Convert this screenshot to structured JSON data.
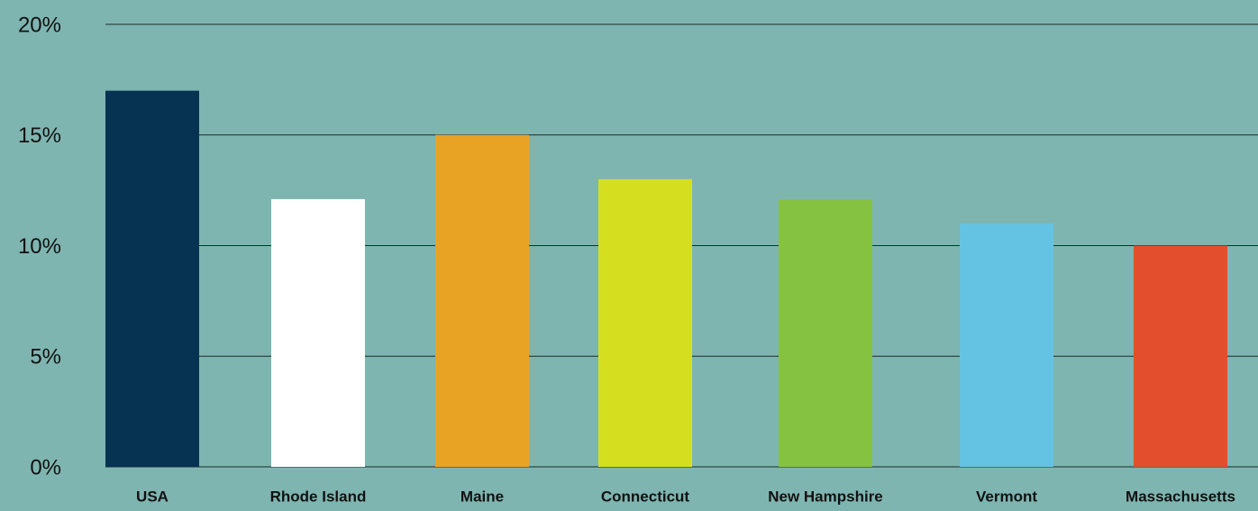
{
  "chart_data": {
    "type": "bar",
    "categories": [
      "USA",
      "Rhode Island",
      "Maine",
      "Connecticut",
      "New Hampshire",
      "Vermont",
      "Massachusetts"
    ],
    "values": [
      17,
      12.1,
      15,
      13,
      12.1,
      11,
      10
    ],
    "colors": [
      "#073352",
      "#ffffff",
      "#e8a325",
      "#d5df1f",
      "#86c241",
      "#64c3e3",
      "#e34f2c"
    ],
    "ylim": [
      0,
      20
    ],
    "yticks": [
      {
        "value": 0,
        "label": "0%"
      },
      {
        "value": 5,
        "label": "5%"
      },
      {
        "value": 10,
        "label": "10%"
      },
      {
        "value": 15,
        "label": "15%"
      },
      {
        "value": 20,
        "label": "20%"
      }
    ],
    "grid": true
  }
}
